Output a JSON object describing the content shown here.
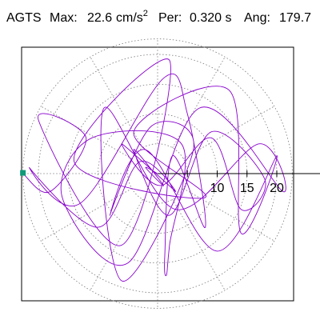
{
  "header": {
    "station": "AGTS",
    "max_label": "Max:",
    "max_value": "22.6",
    "max_unit": "cm/s",
    "max_unit_exp": "2",
    "per_label": "Per:",
    "per_value": "0.320 s",
    "ang_label": "Ang:",
    "ang_value": "179.7"
  },
  "colors": {
    "trace": "#8800cc",
    "marker": "#11997a",
    "axis": "#000000",
    "grid": "#777777"
  },
  "chart_data": {
    "type": "line",
    "title": "",
    "xlabel": "",
    "ylabel": "",
    "radial_ticks": [
      5,
      10,
      15,
      20
    ],
    "tick_labels": [
      "10",
      "15",
      "20"
    ],
    "rmax": 22.6,
    "grid": true,
    "grid_ring_spacing": 5,
    "grid_spoke_step_deg": 30,
    "max_angle_deg": 179.7,
    "series": [
      {
        "x": [
          -22.6,
          -18,
          -12,
          -20,
          -6,
          2,
          -14,
          8,
          -4,
          12,
          14,
          20,
          10,
          -2,
          -8,
          -1,
          6,
          -6,
          -9,
          3,
          17,
          21,
          7,
          -5,
          -16,
          -11,
          4,
          2,
          1.5,
          1.2,
          2.5,
          8,
          5,
          1,
          -13,
          -21.5,
          -10,
          -3,
          3,
          -6,
          0.5,
          9,
          14,
          18,
          9,
          2,
          -4,
          1,
          -2,
          0
        ],
        "y": [
          0,
          -3,
          6,
          9,
          -12,
          19,
          2,
          -4,
          7,
          14,
          -10,
          3,
          -13,
          4,
          -7,
          8,
          4,
          -18,
          11,
          -6,
          5,
          -3,
          11,
          -15,
          -4,
          6,
          5,
          -12,
          -17,
          -14,
          3,
          -9,
          10,
          16,
          -5,
          1,
          -9,
          2,
          -3,
          5,
          -2,
          6,
          -6,
          -1,
          7,
          -7,
          4,
          -2,
          1,
          0
        ]
      }
    ]
  }
}
